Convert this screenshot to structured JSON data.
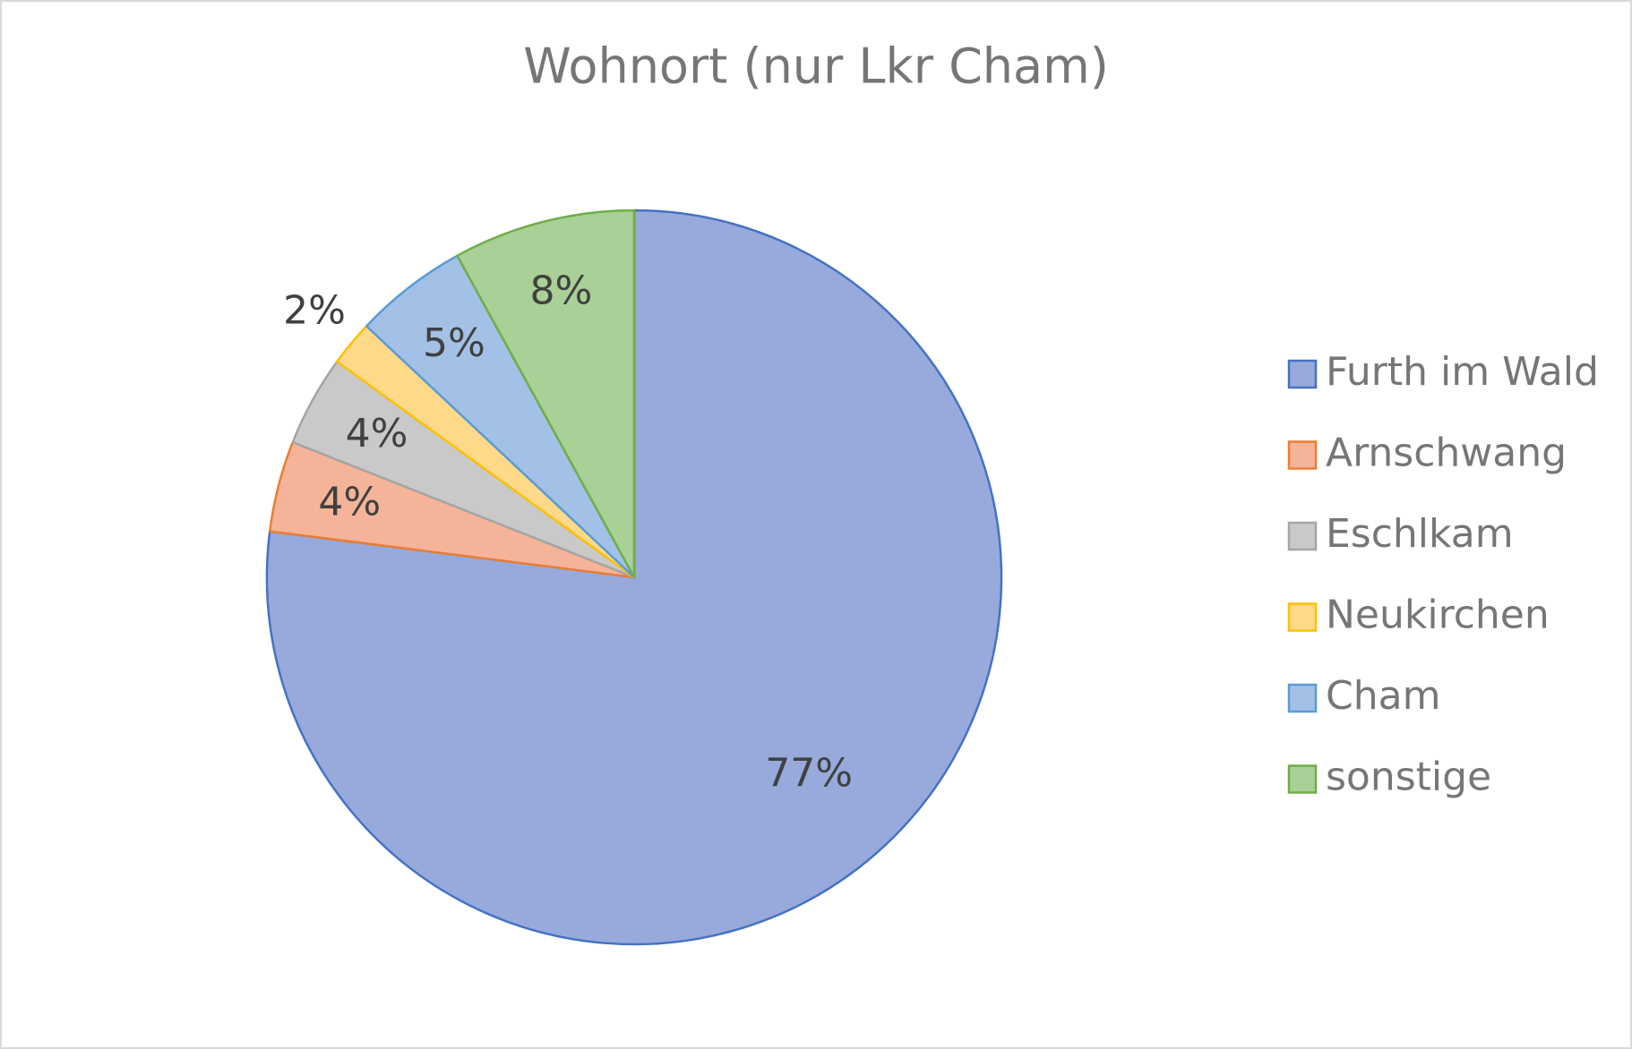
{
  "chart_data": {
    "type": "pie",
    "title": "Wohnort (nur Lkr Cham)",
    "categories": [
      "Furth im Wald",
      "Arnschwang",
      "Eschlkam",
      "Neukirchen",
      "Cham",
      "sonstige"
    ],
    "values": [
      77,
      4,
      4,
      2,
      5,
      8
    ],
    "value_labels": [
      "77%",
      "4%",
      "4%",
      "2%",
      "5%",
      "8%"
    ],
    "colors": [
      "#98aadb",
      "#f5b49a",
      "#c9c9c9",
      "#ffd98a",
      "#a3c1e6",
      "#a9d096"
    ],
    "edge_colors": [
      "#4472c4",
      "#ed7d31",
      "#a5a5a5",
      "#ffc000",
      "#5b9bd5",
      "#70ad47"
    ],
    "legend": "right"
  }
}
